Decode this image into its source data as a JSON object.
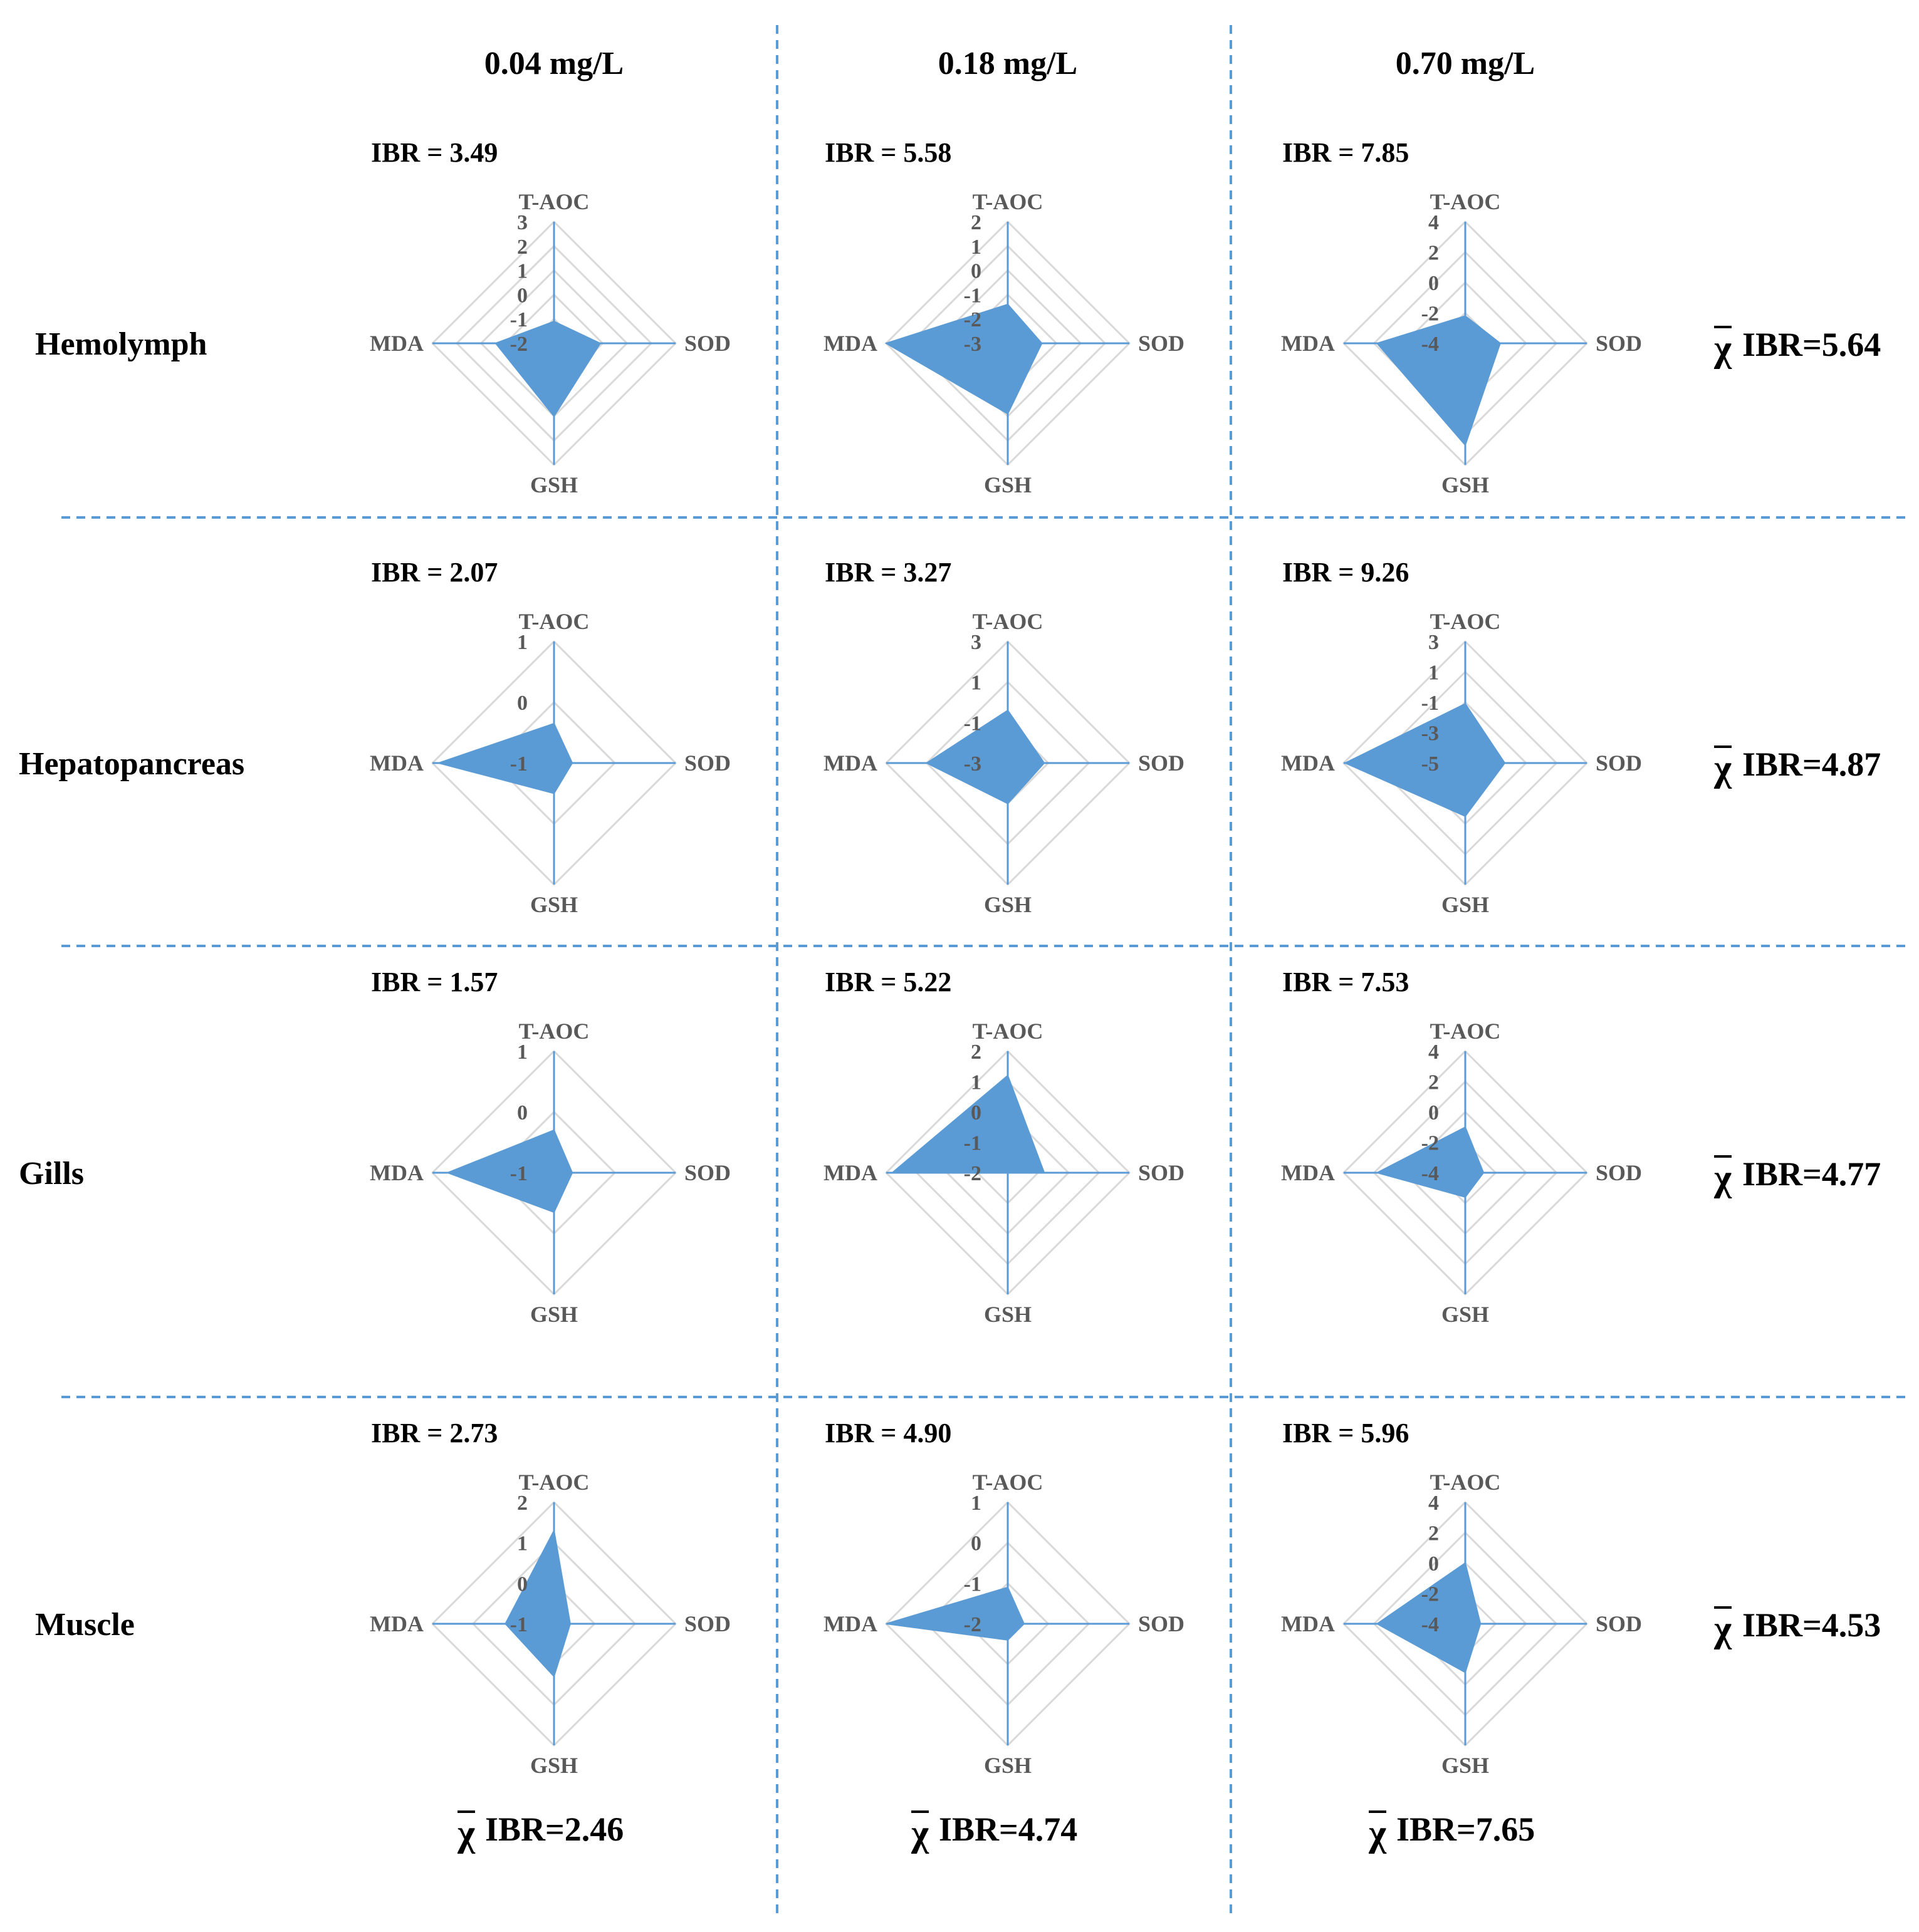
{
  "chart_data": {
    "type": "radar",
    "title": "",
    "concentrations": [
      "0.04 mg/L",
      "0.18 mg/L",
      "0.70 mg/L"
    ],
    "tissues": [
      "Hemolymph",
      "Hepatopancreas",
      "Gills",
      "Muscle"
    ],
    "axes": [
      "T-AOC",
      "SOD",
      "GSH",
      "MDA"
    ],
    "panels": [
      {
        "tissue": "Hemolymph",
        "concentration": "0.04 mg/L",
        "ibr_text": "IBR = 3.49",
        "ticks": [
          "3",
          "2",
          "1",
          "0",
          "-1",
          "-2"
        ],
        "range": [
          -2,
          3
        ],
        "values": {
          "T-AOC": -1.1,
          "SOD": -0.1,
          "GSH": 1.0,
          "MDA": 0.4
        }
      },
      {
        "tissue": "Hemolymph",
        "concentration": "0.18 mg/L",
        "ibr_text": "IBR = 5.58",
        "ticks": [
          "2",
          "1",
          "0",
          "-1",
          "-2",
          "-3"
        ],
        "range": [
          -3,
          2
        ],
        "values": {
          "T-AOC": -1.4,
          "SOD": -1.6,
          "GSH": -0.1,
          "MDA": 2.0
        }
      },
      {
        "tissue": "Hemolymph",
        "concentration": "0.70 mg/L",
        "ibr_text": "IBR = 7.85",
        "ticks": [
          "4",
          "2",
          "0",
          "-2",
          "-4"
        ],
        "range": [
          -4,
          4
        ],
        "values": {
          "T-AOC": -2.2,
          "SOD": -1.7,
          "GSH": 2.7,
          "MDA": 1.8
        }
      },
      {
        "tissue": "Hepatopancreas",
        "concentration": "0.04 mg/L",
        "ibr_text": "IBR = 2.07",
        "ticks": [
          "1",
          "0",
          "-1"
        ],
        "range": [
          -1,
          1
        ],
        "values": {
          "T-AOC": -0.35,
          "SOD": -0.7,
          "GSH": -0.5,
          "MDA": 0.9
        }
      },
      {
        "tissue": "Hepatopancreas",
        "concentration": "0.18 mg/L",
        "ibr_text": "IBR = 3.27",
        "ticks": [
          "3",
          "1",
          "-1",
          "-3"
        ],
        "range": [
          -3,
          3
        ],
        "values": {
          "T-AOC": -0.4,
          "SOD": -1.2,
          "GSH": -1.0,
          "MDA": 1.0
        }
      },
      {
        "tissue": "Hepatopancreas",
        "concentration": "0.70 mg/L",
        "ibr_text": "IBR = 9.26",
        "ticks": [
          "3",
          "1",
          "-1",
          "-3",
          "-5"
        ],
        "range": [
          -5,
          3
        ],
        "values": {
          "T-AOC": -1.1,
          "SOD": -2.4,
          "GSH": -1.5,
          "MDA": 2.9
        }
      },
      {
        "tissue": "Gills",
        "concentration": "0.04 mg/L",
        "ibr_text": "IBR = 1.57",
        "ticks": [
          "1",
          "0",
          "-1"
        ],
        "range": [
          -1,
          1
        ],
        "values": {
          "T-AOC": -0.3,
          "SOD": -0.7,
          "GSH": -0.35,
          "MDA": 0.75
        }
      },
      {
        "tissue": "Gills",
        "concentration": "0.18 mg/L",
        "ibr_text": "IBR = 5.22",
        "ticks": [
          "2",
          "1",
          "0",
          "-1",
          "-2"
        ],
        "range": [
          -2,
          2
        ],
        "values": {
          "T-AOC": 1.2,
          "SOD": -0.8,
          "GSH": -2.0,
          "MDA": 1.8
        }
      },
      {
        "tissue": "Gills",
        "concentration": "0.70 mg/L",
        "ibr_text": "IBR = 7.53",
        "ticks": [
          "4",
          "2",
          "0",
          "-2",
          "-4"
        ],
        "range": [
          -4,
          4
        ],
        "values": {
          "T-AOC": -1.0,
          "SOD": -2.8,
          "GSH": -2.4,
          "MDA": 1.8
        }
      },
      {
        "tissue": "Muscle",
        "concentration": "0.04 mg/L",
        "ibr_text": "IBR = 2.73",
        "ticks": [
          "2",
          "1",
          "0",
          "-1"
        ],
        "range": [
          -1,
          2
        ],
        "values": {
          "T-AOC": 1.3,
          "SOD": -0.6,
          "GSH": 0.3,
          "MDA": 0.2
        }
      },
      {
        "tissue": "Muscle",
        "concentration": "0.18 mg/L",
        "ibr_text": "IBR = 4.90",
        "ticks": [
          "1",
          "0",
          "-1",
          "-2"
        ],
        "range": [
          -2,
          1
        ],
        "values": {
          "T-AOC": -1.1,
          "SOD": -1.6,
          "GSH": -1.6,
          "MDA": 1.0
        }
      },
      {
        "tissue": "Muscle",
        "concentration": "0.70 mg/L",
        "ibr_text": "IBR = 5.96",
        "ticks": [
          "4",
          "2",
          "0",
          "-2",
          "-4"
        ],
        "range": [
          -4,
          4
        ],
        "values": {
          "T-AOC": 0.0,
          "SOD": -3.0,
          "GSH": -0.8,
          "MDA": 1.8
        }
      }
    ],
    "tissue_means": [
      {
        "tissue": "Hemolymph",
        "text": "IBR=5.64"
      },
      {
        "tissue": "Hepatopancreas",
        "text": "IBR=4.87"
      },
      {
        "tissue": "Gills",
        "text": "IBR=4.77"
      },
      {
        "tissue": "Muscle",
        "text": "IBR=4.53"
      }
    ],
    "concentration_means": [
      {
        "concentration": "0.04 mg/L",
        "text": "IBR=2.46"
      },
      {
        "concentration": "0.18 mg/L",
        "text": "IBR=4.74"
      },
      {
        "concentration": "0.70 mg/L",
        "text": "IBR=7.65"
      }
    ],
    "mean_symbol": "χ",
    "colors": {
      "fill": "#5b9bd5",
      "grid": "#d9d9d9",
      "separator": "#5b9bd5",
      "label": "#595959"
    }
  }
}
